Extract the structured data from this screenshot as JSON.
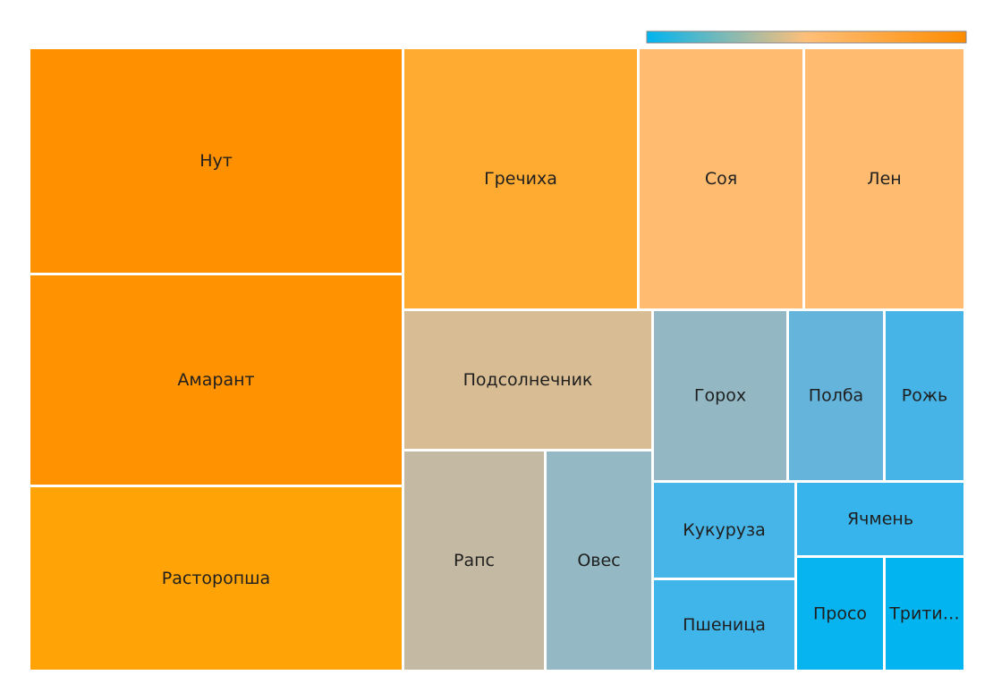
{
  "chart_data": {
    "type": "treemap",
    "color_scale": {
      "low": "#00b4f0",
      "mid": "#ffbf79",
      "high": "#ff8c00"
    },
    "items": [
      {
        "label": "Нут",
        "value": 95,
        "color": "#ff9000"
      },
      {
        "label": "Амарант",
        "value": 90,
        "color": "#ff9200"
      },
      {
        "label": "Расторопша",
        "value": 80,
        "color": "#ffa306"
      },
      {
        "label": "Гречиха",
        "value": 76,
        "color": "#ffaa30"
      },
      {
        "label": "Соя",
        "value": 50,
        "color": "#ffbb70"
      },
      {
        "label": "Лен",
        "value": 48,
        "color": "#ffbb70"
      },
      {
        "label": "Подсолнечник",
        "value": 40,
        "color": "#d8bc93"
      },
      {
        "label": "Рапс",
        "value": 36,
        "color": "#c4b9a2"
      },
      {
        "label": "Овес",
        "value": 27,
        "color": "#95b9c4"
      },
      {
        "label": "Горох",
        "value": 27,
        "color": "#93b8c4"
      },
      {
        "label": "Полба",
        "value": 20,
        "color": "#64b4dc"
      },
      {
        "label": "Рожь",
        "value": 17,
        "color": "#46b4e6"
      },
      {
        "label": "Кукуруза",
        "value": 16,
        "color": "#48b5e8"
      },
      {
        "label": "Ячмень",
        "value": 17,
        "color": "#38b4ec"
      },
      {
        "label": "Пшеница",
        "value": 15,
        "color": "#40b5ea"
      },
      {
        "label": "Просо",
        "value": 12,
        "color": "#08b4f0"
      },
      {
        "label": "Тритикале",
        "value": 11,
        "color": "#02b4f0"
      }
    ]
  }
}
